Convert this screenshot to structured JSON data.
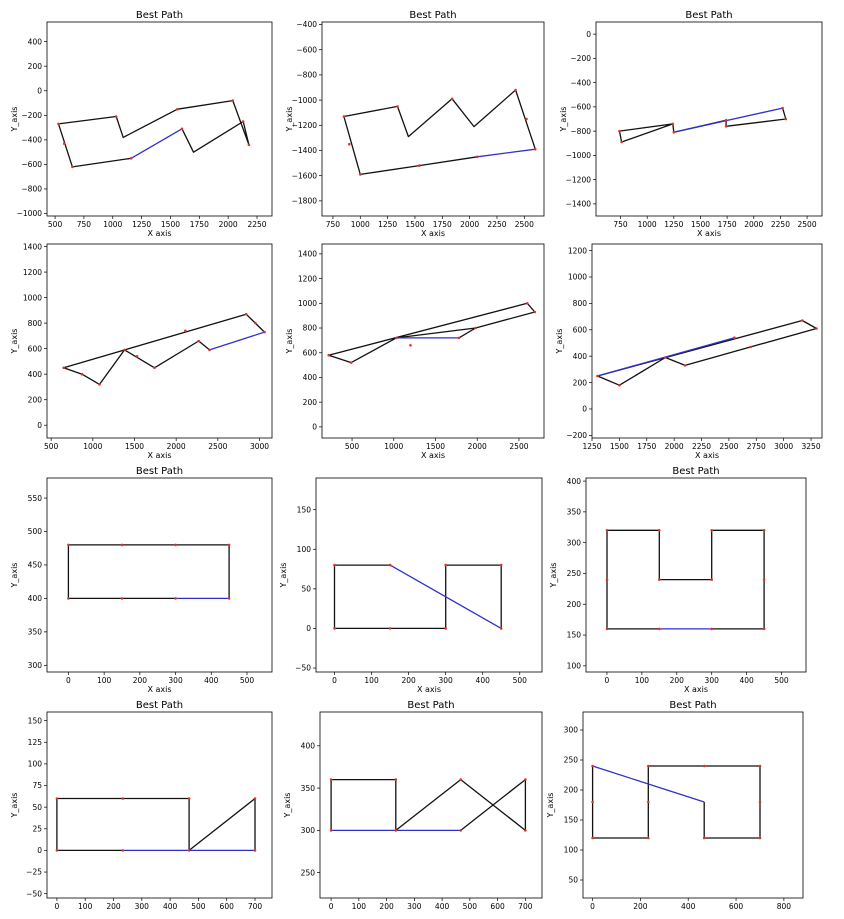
{
  "chart_data": [
    {
      "type": "line",
      "title": "Best Path",
      "xlabel": "X axis",
      "ylabel": "Y_axis",
      "xlim": [
        430,
        2380
      ],
      "ylim": [
        -1020,
        560
      ],
      "xticks": [
        500,
        750,
        1000,
        1250,
        1500,
        1750,
        2000,
        2250
      ],
      "yticks": [
        -1000,
        -800,
        -600,
        -400,
        -200,
        0,
        200,
        400
      ],
      "black_path": [
        [
          1160,
          -550
        ],
        [
          650,
          -620
        ],
        [
          530,
          -270
        ],
        [
          1030,
          -210
        ],
        [
          1090,
          -380
        ],
        [
          1560,
          -150
        ],
        [
          2040,
          -80
        ],
        [
          2180,
          -440
        ],
        [
          2130,
          -250
        ],
        [
          1700,
          -500
        ],
        [
          1600,
          -310
        ]
      ],
      "blue_path": [
        [
          1600,
          -310
        ],
        [
          1160,
          -550
        ]
      ],
      "points": [
        [
          530,
          -270
        ],
        [
          580,
          -430
        ],
        [
          650,
          -620
        ],
        [
          1030,
          -210
        ],
        [
          1160,
          -550
        ],
        [
          1560,
          -150
        ],
        [
          1600,
          -310
        ],
        [
          2040,
          -80
        ],
        [
          2130,
          -250
        ],
        [
          2180,
          -440
        ]
      ]
    },
    {
      "type": "line",
      "title": "Best Path",
      "xlabel": "X axis",
      "ylabel": "Y_axis",
      "xlim": [
        650,
        2680
      ],
      "ylim": [
        -1920,
        -380
      ],
      "xticks": [
        750,
        1000,
        1250,
        1500,
        1750,
        2000,
        2250,
        2500
      ],
      "yticks": [
        -1800,
        -1600,
        -1400,
        -1200,
        -1000,
        -800,
        -600,
        -400
      ],
      "black_path": [
        [
          2600,
          -1390
        ],
        [
          2420,
          -920
        ],
        [
          2040,
          -1210
        ],
        [
          1840,
          -990
        ],
        [
          1440,
          -1290
        ],
        [
          1340,
          -1050
        ],
        [
          850,
          -1130
        ],
        [
          1000,
          -1590
        ],
        [
          1540,
          -1520
        ],
        [
          2070,
          -1450
        ]
      ],
      "blue_path": [
        [
          2070,
          -1450
        ],
        [
          2600,
          -1390
        ]
      ],
      "points": [
        [
          850,
          -1130
        ],
        [
          900,
          -1350
        ],
        [
          1000,
          -1590
        ],
        [
          1340,
          -1050
        ],
        [
          1540,
          -1520
        ],
        [
          1840,
          -990
        ],
        [
          2070,
          -1450
        ],
        [
          2420,
          -920
        ],
        [
          2520,
          -1150
        ],
        [
          2600,
          -1390
        ]
      ]
    },
    {
      "type": "line",
      "title": "Best Path",
      "xlabel": "X axis",
      "ylabel": "Y_axis",
      "xlim": [
        520,
        2640
      ],
      "ylim": [
        -1500,
        100
      ],
      "xticks": [
        750,
        1000,
        1250,
        1500,
        1750,
        2000,
        2250,
        2500
      ],
      "yticks": [
        -1400,
        -1200,
        -1000,
        -800,
        -600,
        -400,
        -200,
        0
      ],
      "black_path": [
        [
          1250,
          -810
        ],
        [
          1740,
          -710
        ],
        [
          1740,
          -760
        ],
        [
          2300,
          -700
        ],
        [
          2270,
          -610
        ]
      ],
      "black_path2": [
        [
          1250,
          -810
        ],
        [
          1240,
          -740
        ],
        [
          740,
          -800
        ],
        [
          760,
          -890
        ],
        [
          1240,
          -740
        ]
      ],
      "blue_path": [
        [
          1250,
          -810
        ],
        [
          2270,
          -610
        ]
      ],
      "points": [
        [
          740,
          -800
        ],
        [
          760,
          -890
        ],
        [
          1240,
          -740
        ],
        [
          1250,
          -810
        ],
        [
          1740,
          -710
        ],
        [
          1740,
          -760
        ],
        [
          2270,
          -610
        ],
        [
          2300,
          -700
        ]
      ]
    },
    {
      "type": "line",
      "title": "",
      "xlabel": "X axis",
      "ylabel": "Y_axis",
      "xlim": [
        450,
        3150
      ],
      "ylim": [
        -100,
        1420
      ],
      "xticks": [
        500,
        1000,
        1500,
        2000,
        2500,
        3000
      ],
      "yticks": [
        0,
        200,
        400,
        600,
        800,
        1000,
        1200,
        1400
      ],
      "black_path": [
        [
          2400,
          590
        ],
        [
          2270,
          660
        ],
        [
          1740,
          450
        ],
        [
          1380,
          590
        ],
        [
          1080,
          320
        ],
        [
          870,
          400
        ],
        [
          650,
          450
        ],
        [
          2840,
          870
        ],
        [
          2950,
          800
        ],
        [
          3060,
          730
        ]
      ],
      "blue_path": [
        [
          3060,
          730
        ],
        [
          2400,
          590
        ]
      ],
      "points": [
        [
          650,
          450
        ],
        [
          870,
          400
        ],
        [
          1080,
          320
        ],
        [
          1380,
          590
        ],
        [
          1530,
          540
        ],
        [
          1740,
          450
        ],
        [
          2110,
          740
        ],
        [
          2270,
          660
        ],
        [
          2400,
          590
        ],
        [
          2840,
          870
        ],
        [
          2950,
          800
        ],
        [
          3060,
          730
        ]
      ]
    },
    {
      "type": "line",
      "title": "",
      "xlabel": "X axis",
      "ylabel": "Y_axis",
      "xlim": [
        140,
        2800
      ],
      "ylim": [
        -90,
        1480
      ],
      "xticks": [
        500,
        1000,
        1500,
        2000,
        2500
      ],
      "yticks": [
        0,
        200,
        400,
        600,
        800,
        1000,
        1200,
        1400
      ],
      "black_path": [
        [
          1780,
          720
        ],
        [
          1980,
          800
        ],
        [
          2690,
          930
        ],
        [
          2600,
          1000
        ],
        [
          220,
          580
        ],
        [
          490,
          520
        ],
        [
          1030,
          720
        ],
        [
          1980,
          800
        ]
      ],
      "blue_path": [
        [
          1030,
          720
        ],
        [
          1780,
          720
        ]
      ],
      "points": [
        [
          220,
          580
        ],
        [
          490,
          520
        ],
        [
          1030,
          720
        ],
        [
          1200,
          660
        ],
        [
          1780,
          720
        ],
        [
          1980,
          800
        ],
        [
          2600,
          1000
        ],
        [
          2690,
          930
        ]
      ]
    },
    {
      "type": "line",
      "title": "",
      "xlabel": "X axis",
      "ylabel": "Y_axis",
      "xlim": [
        1250,
        3350
      ],
      "ylim": [
        -220,
        1250
      ],
      "xticks": [
        1250,
        1500,
        1750,
        2000,
        2250,
        2500,
        2750,
        3000,
        3250
      ],
      "yticks": [
        -200,
        0,
        200,
        400,
        600,
        800,
        1000,
        1200
      ],
      "black_path": [
        [
          1300,
          250
        ],
        [
          1500,
          180
        ],
        [
          1920,
          390
        ],
        [
          2100,
          330
        ],
        [
          2700,
          470
        ],
        [
          3300,
          610
        ],
        [
          3170,
          670
        ],
        [
          1300,
          250
        ]
      ],
      "blue_path": [
        [
          1300,
          250
        ],
        [
          2550,
          540
        ]
      ],
      "points": [
        [
          1300,
          250
        ],
        [
          1500,
          180
        ],
        [
          1920,
          390
        ],
        [
          2100,
          330
        ],
        [
          2550,
          540
        ],
        [
          2700,
          470
        ],
        [
          3170,
          670
        ],
        [
          3300,
          610
        ]
      ]
    },
    {
      "type": "line",
      "title": "Best Path",
      "xlabel": "X axis",
      "ylabel": "Y_axis",
      "xlim": [
        -60,
        570
      ],
      "ylim": [
        290,
        580
      ],
      "xticks": [
        0,
        100,
        200,
        300,
        400,
        500
      ],
      "yticks": [
        300,
        350,
        400,
        450,
        500,
        550
      ],
      "black_path": [
        [
          300,
          400
        ],
        [
          0,
          400
        ],
        [
          0,
          480
        ],
        [
          450,
          480
        ],
        [
          450,
          400
        ]
      ],
      "blue_path": [
        [
          300,
          400
        ],
        [
          450,
          400
        ]
      ],
      "points": [
        [
          0,
          480
        ],
        [
          150,
          480
        ],
        [
          300,
          480
        ],
        [
          450,
          480
        ],
        [
          0,
          400
        ],
        [
          150,
          400
        ],
        [
          300,
          400
        ],
        [
          450,
          400
        ]
      ]
    },
    {
      "type": "line",
      "title": "",
      "xlabel": "X axis",
      "ylabel": "Y_axis",
      "xlim": [
        -50,
        560
      ],
      "ylim": [
        -55,
        190
      ],
      "xticks": [
        0,
        100,
        200,
        300,
        400,
        500
      ],
      "yticks": [
        -50,
        0,
        50,
        100,
        150
      ],
      "black_path": [
        [
          150,
          80
        ],
        [
          0,
          80
        ],
        [
          0,
          0
        ],
        [
          300,
          0
        ],
        [
          300,
          80
        ],
        [
          450,
          80
        ],
        [
          450,
          0
        ]
      ],
      "blue_path": [
        [
          150,
          80
        ],
        [
          450,
          0
        ]
      ],
      "points": [
        [
          0,
          80
        ],
        [
          150,
          80
        ],
        [
          300,
          80
        ],
        [
          450,
          80
        ],
        [
          0,
          0
        ],
        [
          150,
          0
        ],
        [
          300,
          0
        ],
        [
          450,
          0
        ]
      ]
    },
    {
      "type": "line",
      "title": "Best Path",
      "xlabel": "X axis",
      "ylabel": "Y_axis",
      "xlim": [
        -60,
        570
      ],
      "ylim": [
        90,
        405
      ],
      "xticks": [
        0,
        100,
        200,
        300,
        400,
        500
      ],
      "yticks": [
        100,
        150,
        200,
        250,
        300,
        350,
        400
      ],
      "black_path": [
        [
          300,
          160
        ],
        [
          450,
          160
        ],
        [
          450,
          320
        ],
        [
          300,
          320
        ],
        [
          300,
          240
        ],
        [
          150,
          240
        ],
        [
          150,
          320
        ],
        [
          0,
          320
        ],
        [
          0,
          160
        ],
        [
          150,
          160
        ]
      ],
      "blue_path": [
        [
          150,
          160
        ],
        [
          300,
          160
        ]
      ],
      "points": [
        [
          0,
          320
        ],
        [
          150,
          320
        ],
        [
          300,
          320
        ],
        [
          450,
          320
        ],
        [
          0,
          240
        ],
        [
          150,
          240
        ],
        [
          300,
          240
        ],
        [
          450,
          240
        ],
        [
          0,
          160
        ],
        [
          150,
          160
        ],
        [
          300,
          160
        ],
        [
          450,
          160
        ]
      ]
    },
    {
      "type": "line",
      "title": "Best Path",
      "xlabel": "",
      "ylabel": "Y_axis",
      "xlim": [
        -35,
        760
      ],
      "ylim": [
        -55,
        160
      ],
      "xticks": [
        0,
        100,
        200,
        300,
        400,
        500,
        600,
        700
      ],
      "yticks": [
        -50,
        -25,
        0,
        25,
        50,
        75,
        100,
        125,
        150
      ],
      "black_path": [
        [
          467,
          0
        ],
        [
          467,
          60
        ],
        [
          0,
          60
        ],
        [
          0,
          0
        ],
        [
          233,
          0
        ]
      ],
      "black_path2": [
        [
          467,
          0
        ],
        [
          700,
          60
        ],
        [
          700,
          0
        ]
      ],
      "blue_path": [
        [
          233,
          0
        ],
        [
          700,
          0
        ]
      ],
      "points": [
        [
          0,
          60
        ],
        [
          233,
          60
        ],
        [
          467,
          60
        ],
        [
          700,
          60
        ],
        [
          0,
          0
        ],
        [
          233,
          0
        ],
        [
          467,
          0
        ],
        [
          700,
          0
        ]
      ]
    },
    {
      "type": "line",
      "title": "Best Path",
      "xlabel": "",
      "ylabel": "Y_axis",
      "xlim": [
        -40,
        760
      ],
      "ylim": [
        220,
        440
      ],
      "xticks": [
        0,
        100,
        200,
        300,
        400,
        500,
        600,
        700
      ],
      "yticks": [
        250,
        300,
        350,
        400
      ],
      "black_path": [
        [
          233,
          300
        ],
        [
          233,
          360
        ],
        [
          0,
          360
        ],
        [
          0,
          300
        ]
      ],
      "black_path2": [
        [
          233,
          300
        ],
        [
          467,
          360
        ],
        [
          700,
          300
        ],
        [
          700,
          360
        ],
        [
          467,
          300
        ]
      ],
      "blue_path": [
        [
          0,
          300
        ],
        [
          467,
          300
        ]
      ],
      "points": [
        [
          0,
          360
        ],
        [
          233,
          360
        ],
        [
          467,
          360
        ],
        [
          700,
          360
        ],
        [
          0,
          300
        ],
        [
          233,
          300
        ],
        [
          467,
          300
        ],
        [
          700,
          300
        ]
      ]
    },
    {
      "type": "line",
      "title": "Best Path",
      "xlabel": "",
      "ylabel": "Y_axis",
      "xlim": [
        -40,
        880
      ],
      "ylim": [
        20,
        330
      ],
      "xticks": [
        0,
        200,
        400,
        600,
        800
      ],
      "yticks": [
        50,
        100,
        150,
        200,
        250,
        300
      ],
      "black_path": [
        [
          467,
          180
        ],
        [
          467,
          120
        ],
        [
          700,
          120
        ],
        [
          700,
          240
        ],
        [
          233,
          240
        ],
        [
          233,
          120
        ],
        [
          0,
          120
        ],
        [
          0,
          240
        ]
      ],
      "blue_path": [
        [
          0,
          240
        ],
        [
          467,
          180
        ]
      ],
      "points": [
        [
          0,
          240
        ],
        [
          233,
          240
        ],
        [
          467,
          240
        ],
        [
          700,
          240
        ],
        [
          0,
          180
        ],
        [
          233,
          180
        ],
        [
          700,
          180
        ],
        [
          0,
          120
        ],
        [
          233,
          120
        ],
        [
          467,
          120
        ],
        [
          700,
          120
        ]
      ]
    }
  ]
}
